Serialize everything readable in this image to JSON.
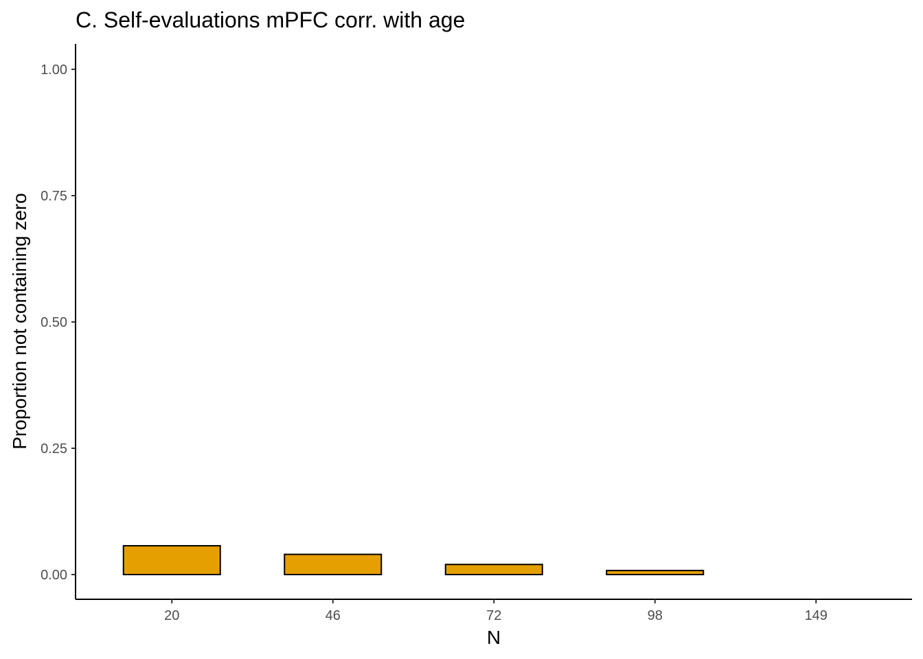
{
  "chart_data": {
    "type": "bar",
    "title": "C. Self-evaluations mPFC corr. with age",
    "xlabel": "N",
    "ylabel": "Proportion not containing zero",
    "categories": [
      "20",
      "46",
      "72",
      "98",
      "149"
    ],
    "values": [
      0.057,
      0.04,
      0.02,
      0.008,
      0.0
    ],
    "ylim": [
      0,
      1
    ],
    "yticks": [
      0.0,
      0.25,
      0.5,
      0.75,
      1.0
    ],
    "ytick_labels": [
      "0.00",
      "0.25",
      "0.50",
      "0.75",
      "1.00"
    ],
    "grid": false,
    "legend": "none",
    "bar_color": "#E69F00",
    "bar_outline": "#000000"
  }
}
